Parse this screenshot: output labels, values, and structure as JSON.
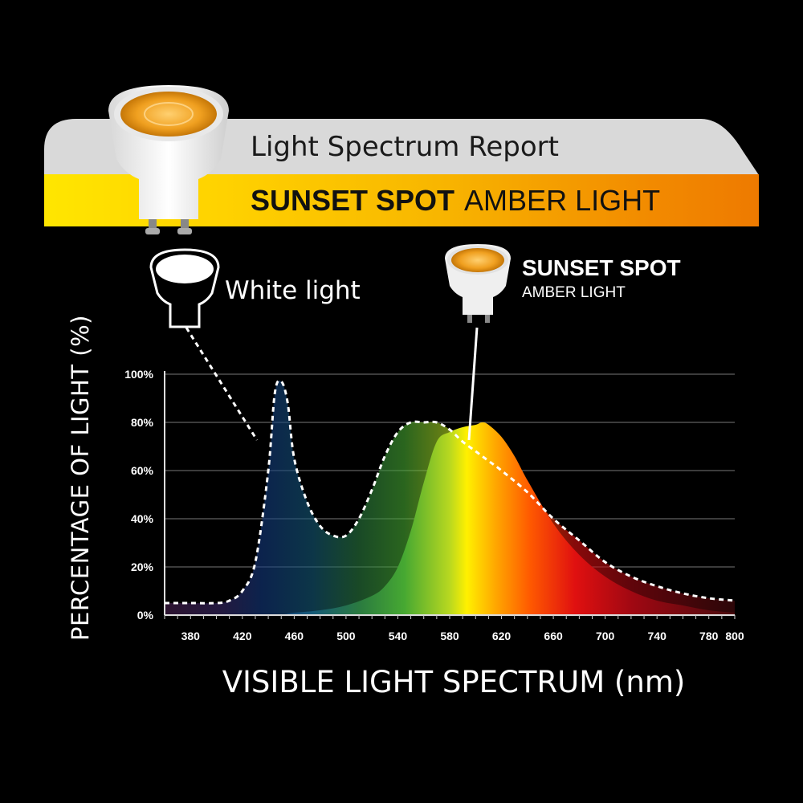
{
  "banner": {
    "title": "Light Spectrum Report",
    "product_bold": "SUNSET SPOT",
    "product_rest": "AMBER LIGHT"
  },
  "callouts": {
    "white_light": "White light",
    "amber_name": "SUNSET SPOT",
    "amber_sub": "AMBER LIGHT"
  },
  "colors": {
    "background": "#000000",
    "banner_grey": "#d9d9d9",
    "banner_yellow": "#ffe600",
    "banner_orange": "#ee7a00",
    "gridline": "#777777"
  },
  "chart_data": {
    "type": "area",
    "xlabel": "VISIBLE LIGHT SPECTRUM (nm)",
    "ylabel": "PERCENTAGE OF LIGHT (%)",
    "xlim": [
      360,
      800
    ],
    "ylim": [
      0,
      100
    ],
    "x_ticks": [
      "380",
      "420",
      "460",
      "500",
      "540",
      "580",
      "620",
      "660",
      "700",
      "740",
      "780",
      "800"
    ],
    "y_ticks": [
      "0%",
      "20%",
      "40%",
      "60%",
      "80%",
      "100%"
    ],
    "grid": true,
    "series": [
      {
        "name": "White light",
        "style": "dashed-outline",
        "x": [
          360,
          380,
          400,
          410,
          420,
          430,
          440,
          445,
          450,
          455,
          460,
          470,
          480,
          490,
          500,
          510,
          520,
          530,
          540,
          550,
          560,
          570,
          580,
          590,
          600,
          610,
          620,
          640,
          660,
          680,
          700,
          720,
          740,
          760,
          780,
          800
        ],
        "y": [
          5,
          5,
          5,
          6,
          10,
          22,
          60,
          92,
          97,
          88,
          65,
          47,
          37,
          33,
          33,
          40,
          52,
          66,
          76,
          80,
          80,
          80,
          77,
          72,
          68,
          64,
          60,
          51,
          40,
          31,
          22,
          16,
          12,
          9,
          7,
          6
        ]
      },
      {
        "name": "SUNSET SPOT AMBER LIGHT",
        "style": "filled",
        "x": [
          360,
          440,
          460,
          480,
          500,
          520,
          530,
          540,
          550,
          560,
          570,
          580,
          590,
          600,
          605,
          610,
          620,
          630,
          640,
          660,
          680,
          700,
          720,
          740,
          760,
          780,
          800
        ],
        "y": [
          0,
          0,
          1,
          2,
          4,
          8,
          12,
          20,
          35,
          55,
          72,
          76,
          78,
          79,
          80,
          79,
          74,
          66,
          56,
          38,
          25,
          16,
          10,
          6,
          4,
          2,
          1
        ]
      }
    ]
  }
}
